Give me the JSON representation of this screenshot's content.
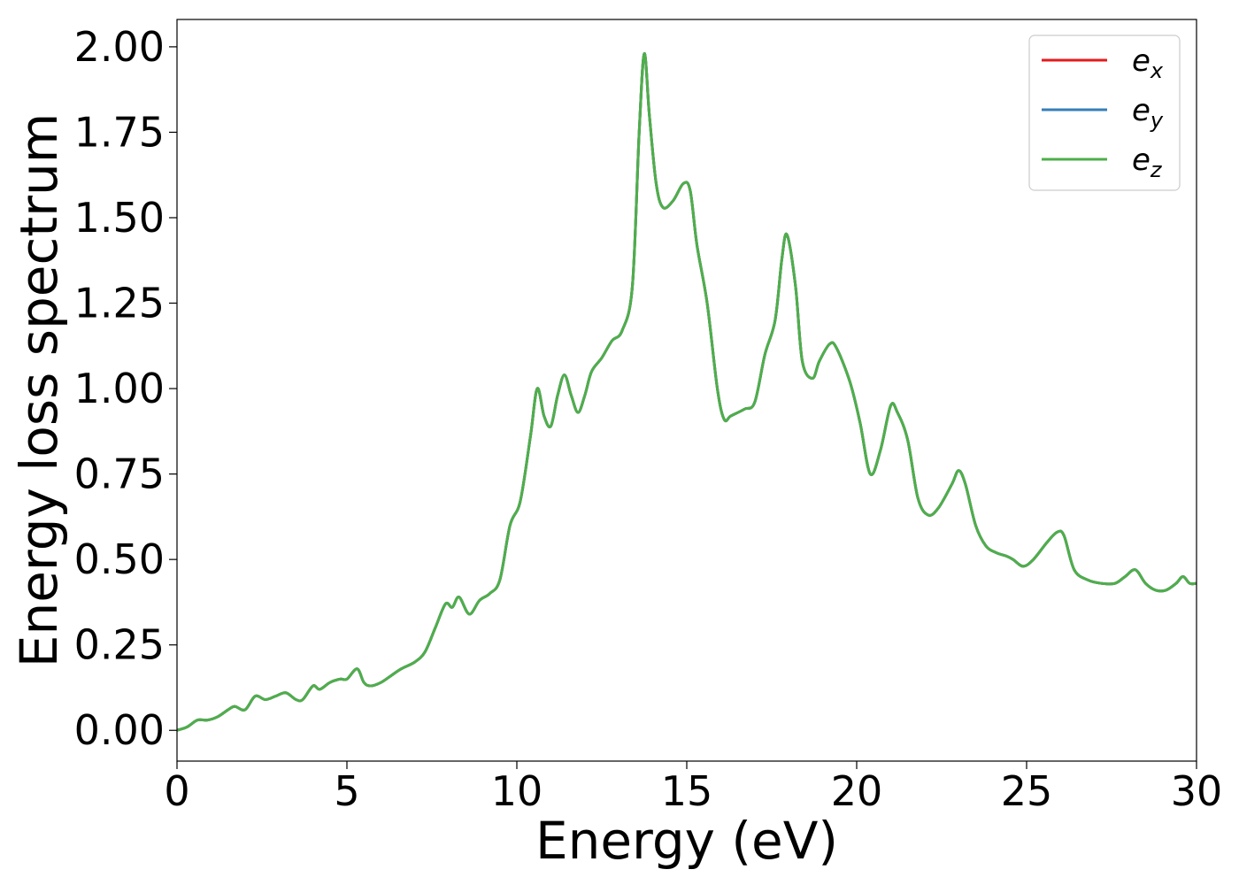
{
  "chart_data": {
    "type": "line",
    "xlabel": "Energy (eV)",
    "ylabel": "Energy loss spectrum",
    "xlim": [
      0,
      30
    ],
    "ylim": [
      -0.09,
      2.08
    ],
    "x_ticks": [
      0,
      5,
      10,
      15,
      20,
      25,
      30
    ],
    "x_tick_labels": [
      "0",
      "5",
      "10",
      "15",
      "20",
      "25",
      "30"
    ],
    "y_ticks": [
      0,
      0.25,
      0.5,
      0.75,
      1.0,
      1.25,
      1.5,
      1.75,
      2.0
    ],
    "y_tick_labels": [
      "0.00",
      "0.25",
      "0.50",
      "0.75",
      "1.00",
      "1.25",
      "1.50",
      "1.75",
      "2.00"
    ],
    "grid": false,
    "legend_position": "top-right",
    "series": [
      {
        "name": "e",
        "subscript": "x",
        "color": "#e41a1c",
        "x": [
          0,
          0.3,
          0.6,
          0.9,
          1.2,
          1.5,
          1.7,
          2.0,
          2.3,
          2.6,
          2.9,
          3.2,
          3.5,
          3.7,
          4.0,
          4.2,
          4.5,
          4.8,
          5.0,
          5.3,
          5.5,
          5.7,
          6.0,
          6.3,
          6.6,
          7.0,
          7.3,
          7.6,
          7.9,
          8.1,
          8.3,
          8.6,
          8.9,
          9.2,
          9.5,
          9.8,
          10.1,
          10.4,
          10.6,
          10.8,
          11.0,
          11.2,
          11.4,
          11.6,
          11.8,
          12.0,
          12.2,
          12.5,
          12.8,
          13.1,
          13.4,
          13.6,
          13.75,
          13.9,
          14.1,
          14.3,
          14.6,
          14.9,
          15.1,
          15.3,
          15.6,
          15.9,
          16.1,
          16.3,
          16.7,
          17.0,
          17.3,
          17.6,
          17.8,
          17.95,
          18.2,
          18.4,
          18.7,
          18.9,
          19.2,
          19.4,
          19.8,
          20.1,
          20.4,
          20.7,
          21.0,
          21.2,
          21.5,
          21.8,
          22.1,
          22.4,
          22.8,
          23.0,
          23.2,
          23.5,
          23.8,
          24.1,
          24.4,
          24.6,
          24.9,
          25.2,
          25.6,
          25.9,
          26.1,
          26.4,
          26.8,
          27.2,
          27.6,
          27.9,
          28.2,
          28.5,
          28.8,
          29.1,
          29.4,
          29.6,
          29.8,
          30.0
        ],
        "y": [
          0.0,
          0.01,
          0.03,
          0.03,
          0.04,
          0.06,
          0.07,
          0.06,
          0.1,
          0.09,
          0.1,
          0.11,
          0.09,
          0.09,
          0.13,
          0.12,
          0.14,
          0.15,
          0.15,
          0.18,
          0.14,
          0.13,
          0.14,
          0.16,
          0.18,
          0.2,
          0.23,
          0.3,
          0.37,
          0.36,
          0.39,
          0.34,
          0.38,
          0.4,
          0.44,
          0.6,
          0.67,
          0.86,
          1.0,
          0.92,
          0.89,
          0.98,
          1.04,
          0.98,
          0.93,
          0.98,
          1.05,
          1.09,
          1.14,
          1.17,
          1.3,
          1.75,
          1.98,
          1.8,
          1.6,
          1.53,
          1.55,
          1.6,
          1.58,
          1.42,
          1.25,
          1.0,
          0.91,
          0.92,
          0.94,
          0.96,
          1.1,
          1.2,
          1.38,
          1.45,
          1.3,
          1.08,
          1.03,
          1.08,
          1.13,
          1.12,
          1.02,
          0.9,
          0.75,
          0.82,
          0.95,
          0.93,
          0.85,
          0.68,
          0.63,
          0.65,
          0.72,
          0.76,
          0.72,
          0.6,
          0.54,
          0.52,
          0.51,
          0.5,
          0.48,
          0.5,
          0.55,
          0.58,
          0.57,
          0.47,
          0.44,
          0.43,
          0.43,
          0.45,
          0.47,
          0.43,
          0.41,
          0.41,
          0.43,
          0.45,
          0.43,
          0.43
        ]
      },
      {
        "name": "e",
        "subscript": "y",
        "color": "#377eb8",
        "x": [
          0,
          0.3,
          0.6,
          0.9,
          1.2,
          1.5,
          1.7,
          2.0,
          2.3,
          2.6,
          2.9,
          3.2,
          3.5,
          3.7,
          4.0,
          4.2,
          4.5,
          4.8,
          5.0,
          5.3,
          5.5,
          5.7,
          6.0,
          6.3,
          6.6,
          7.0,
          7.3,
          7.6,
          7.9,
          8.1,
          8.3,
          8.6,
          8.9,
          9.2,
          9.5,
          9.8,
          10.1,
          10.4,
          10.6,
          10.8,
          11.0,
          11.2,
          11.4,
          11.6,
          11.8,
          12.0,
          12.2,
          12.5,
          12.8,
          13.1,
          13.4,
          13.6,
          13.75,
          13.9,
          14.1,
          14.3,
          14.6,
          14.9,
          15.1,
          15.3,
          15.6,
          15.9,
          16.1,
          16.3,
          16.7,
          17.0,
          17.3,
          17.6,
          17.8,
          17.95,
          18.2,
          18.4,
          18.7,
          18.9,
          19.2,
          19.4,
          19.8,
          20.1,
          20.4,
          20.7,
          21.0,
          21.2,
          21.5,
          21.8,
          22.1,
          22.4,
          22.8,
          23.0,
          23.2,
          23.5,
          23.8,
          24.1,
          24.4,
          24.6,
          24.9,
          25.2,
          25.6,
          25.9,
          26.1,
          26.4,
          26.8,
          27.2,
          27.6,
          27.9,
          28.2,
          28.5,
          28.8,
          29.1,
          29.4,
          29.6,
          29.8,
          30.0
        ],
        "y": [
          0.0,
          0.01,
          0.03,
          0.03,
          0.04,
          0.06,
          0.07,
          0.06,
          0.1,
          0.09,
          0.1,
          0.11,
          0.09,
          0.09,
          0.13,
          0.12,
          0.14,
          0.15,
          0.15,
          0.18,
          0.14,
          0.13,
          0.14,
          0.16,
          0.18,
          0.2,
          0.23,
          0.3,
          0.37,
          0.36,
          0.39,
          0.34,
          0.38,
          0.4,
          0.44,
          0.6,
          0.67,
          0.86,
          1.0,
          0.92,
          0.89,
          0.98,
          1.04,
          0.98,
          0.93,
          0.98,
          1.05,
          1.09,
          1.14,
          1.17,
          1.3,
          1.75,
          1.98,
          1.8,
          1.6,
          1.53,
          1.55,
          1.6,
          1.58,
          1.42,
          1.25,
          1.0,
          0.91,
          0.92,
          0.94,
          0.96,
          1.1,
          1.2,
          1.38,
          1.45,
          1.3,
          1.08,
          1.03,
          1.08,
          1.13,
          1.12,
          1.02,
          0.9,
          0.75,
          0.82,
          0.95,
          0.93,
          0.85,
          0.68,
          0.63,
          0.65,
          0.72,
          0.76,
          0.72,
          0.6,
          0.54,
          0.52,
          0.51,
          0.5,
          0.48,
          0.5,
          0.55,
          0.58,
          0.57,
          0.47,
          0.44,
          0.43,
          0.43,
          0.45,
          0.47,
          0.43,
          0.41,
          0.41,
          0.43,
          0.45,
          0.43,
          0.43
        ]
      },
      {
        "name": "e",
        "subscript": "z",
        "color": "#4daf4a",
        "x": [
          0,
          0.3,
          0.6,
          0.9,
          1.2,
          1.5,
          1.7,
          2.0,
          2.3,
          2.6,
          2.9,
          3.2,
          3.5,
          3.7,
          4.0,
          4.2,
          4.5,
          4.8,
          5.0,
          5.3,
          5.5,
          5.7,
          6.0,
          6.3,
          6.6,
          7.0,
          7.3,
          7.6,
          7.9,
          8.1,
          8.3,
          8.6,
          8.9,
          9.2,
          9.5,
          9.8,
          10.1,
          10.4,
          10.6,
          10.8,
          11.0,
          11.2,
          11.4,
          11.6,
          11.8,
          12.0,
          12.2,
          12.5,
          12.8,
          13.1,
          13.4,
          13.6,
          13.75,
          13.9,
          14.1,
          14.3,
          14.6,
          14.9,
          15.1,
          15.3,
          15.6,
          15.9,
          16.1,
          16.3,
          16.7,
          17.0,
          17.3,
          17.6,
          17.8,
          17.95,
          18.2,
          18.4,
          18.7,
          18.9,
          19.2,
          19.4,
          19.8,
          20.1,
          20.4,
          20.7,
          21.0,
          21.2,
          21.5,
          21.8,
          22.1,
          22.4,
          22.8,
          23.0,
          23.2,
          23.5,
          23.8,
          24.1,
          24.4,
          24.6,
          24.9,
          25.2,
          25.6,
          25.9,
          26.1,
          26.4,
          26.8,
          27.2,
          27.6,
          27.9,
          28.2,
          28.5,
          28.8,
          29.1,
          29.4,
          29.6,
          29.8,
          30.0
        ],
        "y": [
          0.0,
          0.01,
          0.03,
          0.03,
          0.04,
          0.06,
          0.07,
          0.06,
          0.1,
          0.09,
          0.1,
          0.11,
          0.09,
          0.09,
          0.13,
          0.12,
          0.14,
          0.15,
          0.15,
          0.18,
          0.14,
          0.13,
          0.14,
          0.16,
          0.18,
          0.2,
          0.23,
          0.3,
          0.37,
          0.36,
          0.39,
          0.34,
          0.38,
          0.4,
          0.44,
          0.6,
          0.67,
          0.86,
          1.0,
          0.92,
          0.89,
          0.98,
          1.04,
          0.98,
          0.93,
          0.98,
          1.05,
          1.09,
          1.14,
          1.17,
          1.3,
          1.75,
          1.98,
          1.8,
          1.6,
          1.53,
          1.55,
          1.6,
          1.58,
          1.42,
          1.25,
          1.0,
          0.91,
          0.92,
          0.94,
          0.96,
          1.1,
          1.2,
          1.38,
          1.45,
          1.3,
          1.08,
          1.03,
          1.08,
          1.13,
          1.12,
          1.02,
          0.9,
          0.75,
          0.82,
          0.95,
          0.93,
          0.85,
          0.68,
          0.63,
          0.65,
          0.72,
          0.76,
          0.72,
          0.6,
          0.54,
          0.52,
          0.51,
          0.5,
          0.48,
          0.5,
          0.55,
          0.58,
          0.57,
          0.47,
          0.44,
          0.43,
          0.43,
          0.45,
          0.47,
          0.43,
          0.41,
          0.41,
          0.43,
          0.45,
          0.43,
          0.43
        ]
      }
    ]
  }
}
